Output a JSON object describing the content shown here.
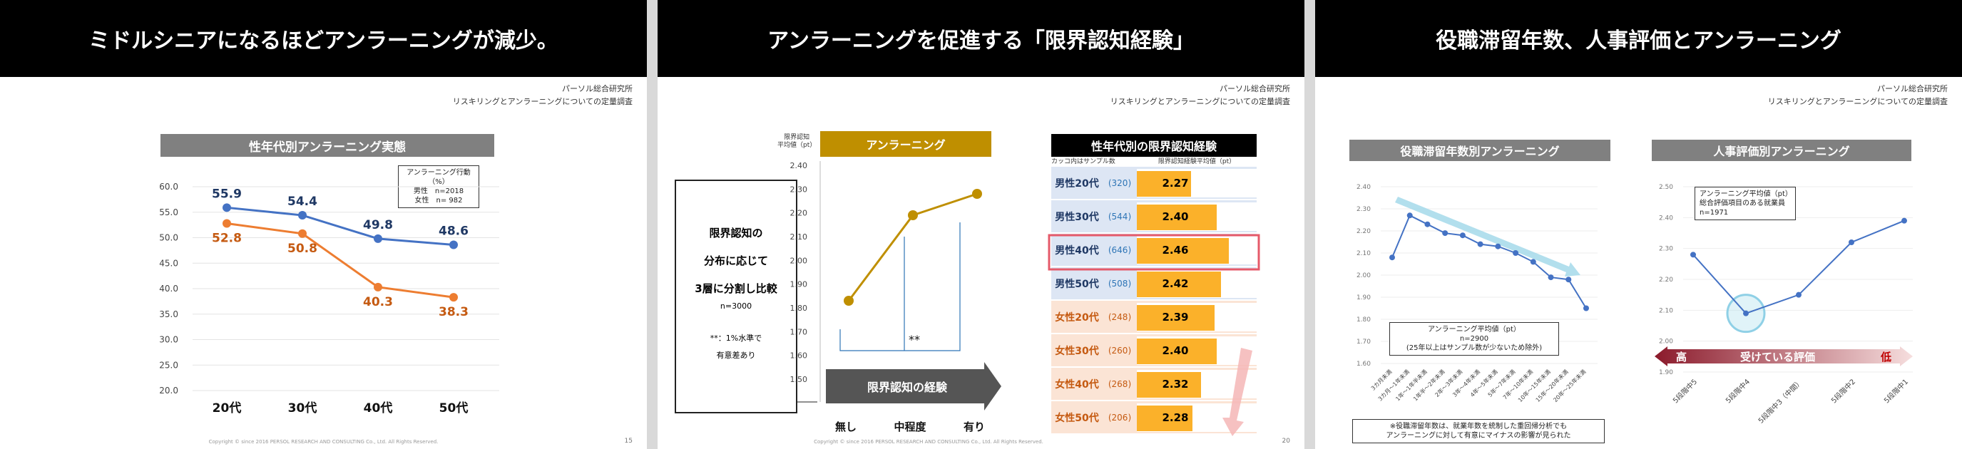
{
  "slide1": {
    "header": "ミドルシニアになるほどアンラーニングが減少。",
    "source_line1": "パーソル総合研究所",
    "source_line2": "リスキリングとアンラーニングについての定量調査",
    "chart_title": "性年代別アンラーニング実態",
    "legend_line1": "アンラーニング行動（%）",
    "legend_line2": "男性　n=2018",
    "legend_line3": "女性　n= 982",
    "copyright": "Copyright © since 2016 PERSOL RESEARCH AND CONSULTING Co., Ltd. All Rights Reserved.",
    "page": "15"
  },
  "slide2": {
    "header": "アンラーニングを促進する「限界認知経験」",
    "source_line1": "パーソル総合研究所",
    "source_line2": "リスキリングとアンラーニングについての定量調査",
    "yaxis_label1": "限界認知",
    "yaxis_label2": "平均値（pt）",
    "chart_title": "アンラーニング",
    "arrow_label": "限界認知の経験",
    "sig_mark": "**",
    "side_line1": "限界認知の",
    "side_line2": "分布に応じて",
    "side_line3": "3層に分割し比較",
    "side_line4": "n=3000",
    "side_note1": "**：1%水準で",
    "side_note2": "有意差あり",
    "table_title": "性年代別の限界認知経験",
    "table_head_left": "カッコ内はサンプル数",
    "table_head_right": "限界認知経験平均値（pt）",
    "table_rows": [
      {
        "label": "男性20代",
        "n": "(320)",
        "value": "2.27"
      },
      {
        "label": "男性30代",
        "n": "(544)",
        "value": "2.40"
      },
      {
        "label": "男性40代",
        "n": "(646)",
        "value": "2.46"
      },
      {
        "label": "男性50代",
        "n": "(508)",
        "value": "2.42"
      },
      {
        "label": "女性20代",
        "n": "(248)",
        "value": "2.39"
      },
      {
        "label": "女性30代",
        "n": "(260)",
        "value": "2.40"
      },
      {
        "label": "女性40代",
        "n": "(268)",
        "value": "2.32"
      },
      {
        "label": "女性50代",
        "n": "(206)",
        "value": "2.28"
      }
    ],
    "copyright": "Copyright © since 2016 PERSOL RESEARCH AND CONSULTING Co., Ltd. All Rights Reserved.",
    "page": "20"
  },
  "slide3": {
    "header": "役職滞留年数、人事評価とアンラーニング",
    "source_line1": "パーソル総合研究所",
    "source_line2": "リスキリングとアンラーニングについての定量調査",
    "left_title": "役職滞留年数別アンラーニング",
    "left_box1": "アンラーニング平均値（pt）",
    "left_box2": "n=2900",
    "left_box3": "(25年以上はサンプル数が少ないため除外)",
    "left_note1": "※役職滞留年数は、就業年数を統制した重回帰分析でも",
    "left_note2": "アンラーニングに対して有意にマイナスの影響が見られた",
    "right_title": "人事評価別アンラーニング",
    "right_box1": "アンラーニング平均値（pt）",
    "right_box2": "総合評価項目のある就業員",
    "right_box3": "n=1971",
    "eval_high": "高",
    "eval_mid": "受けている評価",
    "eval_low": "低"
  },
  "chart_data": [
    {
      "type": "line",
      "title": "性年代別アンラーニング実態",
      "categories": [
        "20代",
        "30代",
        "40代",
        "50代"
      ],
      "series": [
        {
          "name": "男性　n=2018",
          "values": [
            55.9,
            54.4,
            49.8,
            48.6
          ],
          "color": "#4472c4"
        },
        {
          "name": "女性　n= 982",
          "values": [
            52.8,
            50.8,
            40.3,
            38.3
          ],
          "color": "#ed7d31"
        }
      ],
      "ylim": [
        20,
        60
      ],
      "yticks": [
        "20.0",
        "25.0",
        "30.0",
        "35.0",
        "40.0",
        "45.0",
        "50.0",
        "55.0",
        "60.0"
      ],
      "grid": true
    },
    {
      "type": "line",
      "title": "アンラーニング",
      "xlabel": "限界認知の経験",
      "categories": [
        "無し",
        "中程度",
        "有り"
      ],
      "values": [
        1.83,
        2.19,
        2.28
      ],
      "color": "#bf8f00",
      "ylim": [
        1.5,
        2.4
      ],
      "yticks": [
        "1.50",
        "1.60",
        "1.70",
        "1.80",
        "1.90",
        "2.00",
        "2.10",
        "2.20",
        "2.30",
        "2.40"
      ]
    },
    {
      "type": "bar",
      "title": "性年代別の限界認知経験",
      "categories": [
        "男性20代",
        "男性30代",
        "男性40代",
        "男性50代",
        "女性20代",
        "女性30代",
        "女性40代",
        "女性50代"
      ],
      "values": [
        2.27,
        2.4,
        2.46,
        2.42,
        2.39,
        2.4,
        2.32,
        2.28
      ]
    },
    {
      "type": "line",
      "title": "役職滞留年数別アンラーニング",
      "categories": [
        "3カ月未満",
        "3カ月～1年未満",
        "1年～1年半未満",
        "1年半～2年未満",
        "2年～3年未満",
        "3年～4年未満",
        "4年～5年未満",
        "5年～7年未満",
        "7年～10年未満",
        "10年～15年未満",
        "15年～20年未満",
        "20年～25年未満"
      ],
      "values": [
        2.08,
        2.27,
        2.23,
        2.19,
        2.18,
        2.14,
        2.13,
        2.1,
        2.06,
        1.99,
        1.98,
        1.85
      ],
      "ylim": [
        1.6,
        2.4
      ],
      "yticks": [
        "1.60",
        "1.70",
        "1.80",
        "1.90",
        "2.00",
        "2.10",
        "2.20",
        "2.30",
        "2.40"
      ],
      "color": "#4472c4"
    },
    {
      "type": "line",
      "title": "人事評価別アンラーニング",
      "categories": [
        "5段階中5",
        "5段階中4",
        "5段階中3（中間）",
        "5段階中2",
        "5段階中1"
      ],
      "values": [
        2.28,
        2.09,
        2.15,
        2.32,
        2.39
      ],
      "ylim": [
        1.9,
        2.5
      ],
      "yticks": [
        "1.90",
        "2.00",
        "2.10",
        "2.20",
        "2.30",
        "2.40",
        "2.50"
      ],
      "color": "#4472c4"
    }
  ]
}
